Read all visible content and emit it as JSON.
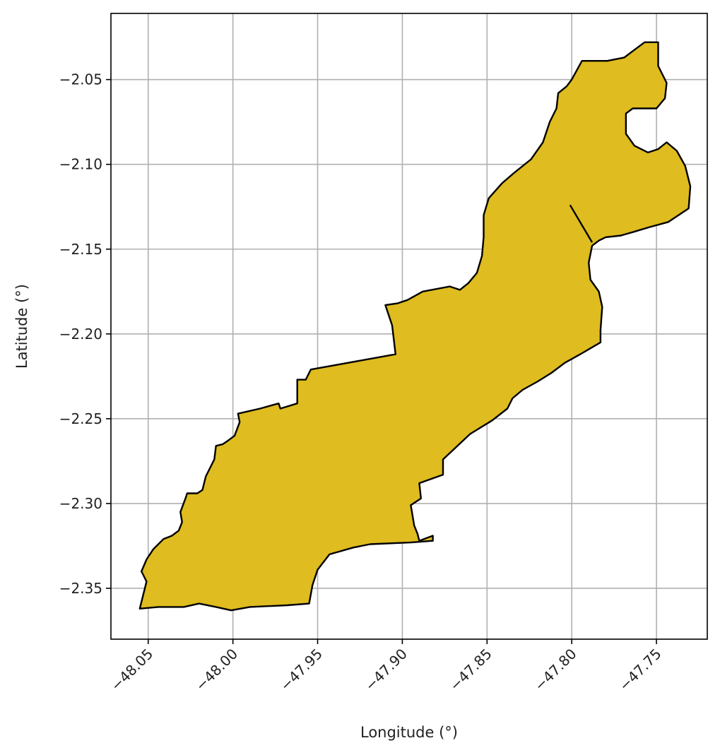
{
  "chart_data": {
    "type": "map",
    "xlabel": "Longitude (°)",
    "ylabel": "Latitude (°)",
    "xlim": [
      -48.072,
      -47.72
    ],
    "ylim": [
      -2.38,
      -2.011
    ],
    "xticks": [
      -48.05,
      -48.0,
      -47.95,
      -47.9,
      -47.85,
      -47.8,
      -47.75
    ],
    "xtick_labels": [
      "−48.05",
      "−48.00",
      "−47.95",
      "−47.90",
      "−47.85",
      "−47.80",
      "−47.75"
    ],
    "yticks": [
      -2.05,
      -2.1,
      -2.15,
      -2.2,
      -2.25,
      -2.3,
      -2.35
    ],
    "ytick_labels": [
      "−2.05",
      "−2.10",
      "−2.15",
      "−2.20",
      "−2.25",
      "−2.30",
      "−2.35"
    ],
    "grid": true,
    "fill_color": "#dfbc1f",
    "edge_color": "#000000",
    "region_outline": [
      [
        -48.055,
        -2.362
      ],
      [
        -48.053,
        -2.354
      ],
      [
        -48.051,
        -2.346
      ],
      [
        -48.054,
        -2.34
      ],
      [
        -48.051,
        -2.333
      ],
      [
        -48.047,
        -2.327
      ],
      [
        -48.041,
        -2.321
      ],
      [
        -48.036,
        -2.319
      ],
      [
        -48.032,
        -2.316
      ],
      [
        -48.03,
        -2.311
      ],
      [
        -48.031,
        -2.305
      ],
      [
        -48.028,
        -2.297
      ],
      [
        -48.027,
        -2.294
      ],
      [
        -48.021,
        -2.294
      ],
      [
        -48.018,
        -2.292
      ],
      [
        -48.016,
        -2.284
      ],
      [
        -48.011,
        -2.274
      ],
      [
        -48.01,
        -2.266
      ],
      [
        -48.006,
        -2.265
      ],
      [
        -48.003,
        -2.263
      ],
      [
        -47.999,
        -2.26
      ],
      [
        -47.996,
        -2.252
      ],
      [
        -47.997,
        -2.247
      ],
      [
        -47.984,
        -2.244
      ],
      [
        -47.973,
        -2.241
      ],
      [
        -47.972,
        -2.244
      ],
      [
        -47.962,
        -2.241
      ],
      [
        -47.962,
        -2.227
      ],
      [
        -47.957,
        -2.227
      ],
      [
        -47.954,
        -2.221
      ],
      [
        -47.904,
        -2.212
      ],
      [
        -47.906,
        -2.195
      ],
      [
        -47.91,
        -2.183
      ],
      [
        -47.903,
        -2.182
      ],
      [
        -47.897,
        -2.18
      ],
      [
        -47.888,
        -2.175
      ],
      [
        -47.872,
        -2.172
      ],
      [
        -47.866,
        -2.174
      ],
      [
        -47.861,
        -2.17
      ],
      [
        -47.856,
        -2.164
      ],
      [
        -47.853,
        -2.154
      ],
      [
        -47.852,
        -2.143
      ],
      [
        -47.852,
        -2.13
      ],
      [
        -47.849,
        -2.12
      ],
      [
        -47.841,
        -2.111
      ],
      [
        -47.834,
        -2.105
      ],
      [
        -47.824,
        -2.097
      ],
      [
        -47.817,
        -2.087
      ],
      [
        -47.813,
        -2.075
      ],
      [
        -47.809,
        -2.067
      ],
      [
        -47.808,
        -2.058
      ],
      [
        -47.803,
        -2.054
      ],
      [
        -47.8,
        -2.05
      ],
      [
        -47.794,
        -2.039
      ],
      [
        -47.779,
        -2.039
      ],
      [
        -47.769,
        -2.037
      ],
      [
        -47.757,
        -2.028
      ],
      [
        -47.749,
        -2.028
      ],
      [
        -47.749,
        -2.042
      ],
      [
        -47.744,
        -2.052
      ],
      [
        -47.745,
        -2.061
      ],
      [
        -47.75,
        -2.067
      ],
      [
        -47.764,
        -2.067
      ],
      [
        -47.768,
        -2.07
      ],
      [
        -47.768,
        -2.082
      ],
      [
        -47.763,
        -2.089
      ],
      [
        -47.755,
        -2.093
      ],
      [
        -47.749,
        -2.091
      ],
      [
        -47.744,
        -2.087
      ],
      [
        -47.738,
        -2.092
      ],
      [
        -47.733,
        -2.101
      ],
      [
        -47.73,
        -2.113
      ],
      [
        -47.731,
        -2.126
      ],
      [
        -47.743,
        -2.134
      ],
      [
        -47.754,
        -2.137
      ],
      [
        -47.764,
        -2.14
      ],
      [
        -47.771,
        -2.142
      ],
      [
        -47.78,
        -2.143
      ],
      [
        -47.784,
        -2.145
      ],
      [
        -47.788,
        -2.148
      ],
      [
        -47.79,
        -2.158
      ],
      [
        -47.789,
        -2.168
      ],
      [
        -47.784,
        -2.175
      ],
      [
        -47.782,
        -2.184
      ],
      [
        -47.783,
        -2.198
      ],
      [
        -47.783,
        -2.205
      ],
      [
        -47.795,
        -2.212
      ],
      [
        -47.804,
        -2.217
      ],
      [
        -47.812,
        -2.223
      ],
      [
        -47.82,
        -2.228
      ],
      [
        -47.829,
        -2.233
      ],
      [
        -47.835,
        -2.238
      ],
      [
        -47.838,
        -2.244
      ],
      [
        -47.847,
        -2.251
      ],
      [
        -47.86,
        -2.259
      ],
      [
        -47.876,
        -2.274
      ],
      [
        -47.876,
        -2.283
      ],
      [
        -47.89,
        -2.288
      ],
      [
        -47.889,
        -2.297
      ],
      [
        -47.895,
        -2.301
      ],
      [
        -47.893,
        -2.313
      ],
      [
        -47.891,
        -2.318
      ],
      [
        -47.89,
        -2.322
      ],
      [
        -47.882,
        -2.319
      ],
      [
        -47.882,
        -2.322
      ],
      [
        -47.895,
        -2.323
      ],
      [
        -47.919,
        -2.324
      ],
      [
        -47.929,
        -2.326
      ],
      [
        -47.943,
        -2.33
      ],
      [
        -47.95,
        -2.339
      ],
      [
        -47.953,
        -2.348
      ],
      [
        -47.955,
        -2.359
      ],
      [
        -47.968,
        -2.36
      ],
      [
        -47.99,
        -2.361
      ],
      [
        -48.001,
        -2.363
      ],
      [
        -48.01,
        -2.361
      ],
      [
        -48.02,
        -2.359
      ],
      [
        -48.029,
        -2.361
      ],
      [
        -48.044,
        -2.361
      ]
    ],
    "inner_boundary": [
      [
        -47.801,
        -2.124
      ],
      [
        -47.788,
        -2.146
      ]
    ]
  }
}
